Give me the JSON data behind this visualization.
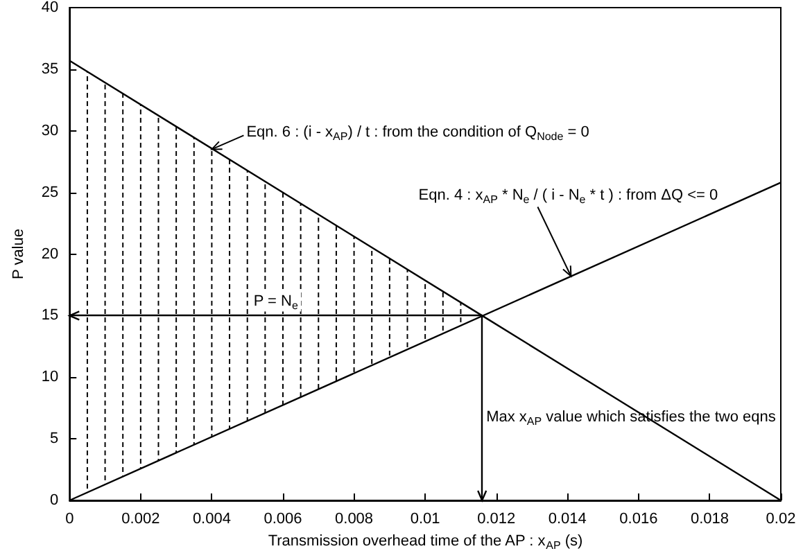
{
  "chart_data": {
    "type": "line",
    "xlabel": "Transmission overhead time of the AP : x$_{AP}$ (s)",
    "ylabel": "P value",
    "series": [
      {
        "x": [
          0,
          0.0116,
          0.02
        ],
        "values": [
          35.7,
          15,
          0
        ],
        "lower": [
          0,
          15,
          null
        ],
        "upper": [
          35.7,
          15,
          null
        ],
        "color": "#000000"
      },
      {
        "x": [
          0,
          0.02
        ],
        "values": [
          0,
          25.8
        ],
        "color": "#000000"
      }
    ],
    "xlim": [
      0,
      0.02
    ],
    "ylim": [
      0,
      40
    ],
    "xticks": [
      0,
      0.002,
      0.004,
      0.006,
      0.008,
      0.01,
      0.012,
      0.014,
      0.016,
      0.018,
      0.02
    ],
    "yticks": [
      0,
      5,
      10,
      15,
      20,
      25,
      30,
      35,
      40
    ],
    "ref_lines": [
      {
        "axis": "y",
        "value": 15,
        "label": "P = N$_{e}$",
        "color": "#000000"
      },
      {
        "axis": "x",
        "value": 0.0116,
        "label": "Max x$_{AP}$ value which satisfies the two eqns",
        "color": "#000000"
      }
    ],
    "annotations": [
      {
        "text": "Eqn. 6 : (i - x$_{AP}$) / t : from the condition of Q$_{Node}$ = 0",
        "x": 0.004,
        "y": 28.5
      },
      {
        "text": "Eqn. 4 : x$_{AP}$ * N$_{e}$ / ( i - N$_{e}$ * t ) : from ΔQ <= 0",
        "x": 0.0141,
        "y": 18.2
      }
    ],
    "grid": false,
    "marker": "none",
    "line_style": "solid"
  }
}
